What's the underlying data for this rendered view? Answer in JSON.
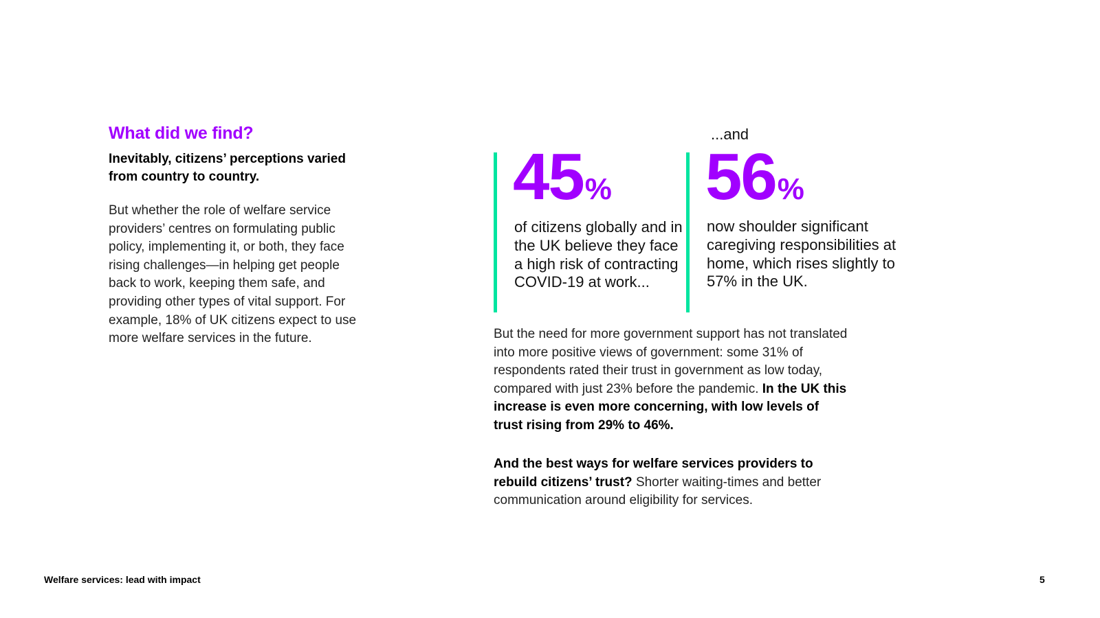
{
  "section": {
    "heading": "What did we find?",
    "subheading": "Inevitably, citizens’ perceptions varied from country to country.",
    "body": "But whether the role of welfare service providers’ centres on formulating public policy, implementing it, or both, they face rising challenges—in helping get people back to work, keeping them safe, and providing other types of vital support. For example, 18% of UK citizens expect to use more welfare services in the future."
  },
  "stats": {
    "connector": "...and",
    "stat1": {
      "number": "45",
      "unit": "%",
      "description": "of citizens globally and in the UK believe they face a high risk of contracting COVID-19 at work..."
    },
    "stat2": {
      "number": "56",
      "unit": "%",
      "description": "now shoulder significant caregiving responsibilities at home, which rises slightly to 57% in the UK."
    }
  },
  "findings": {
    "paragraph1_regular": "But the need for more government support has not translated into more positive views of government: some 31% of respondents rated their trust in government as low today, compared with just 23% before the pandemic.",
    "paragraph1_bold": "In the UK this increase is even more concerning, with low levels of trust rising from 29% to 46%.",
    "paragraph2_bold": "And the best ways for welfare services providers to rebuild citizens’ trust?",
    "paragraph2_regular": "Shorter waiting-times and better communication around eligibility for services."
  },
  "footer": {
    "title": "Welfare services: lead with impact",
    "page_number": "5"
  },
  "colors": {
    "accent_purple": "#a100ff",
    "accent_green": "#00e5a0"
  }
}
